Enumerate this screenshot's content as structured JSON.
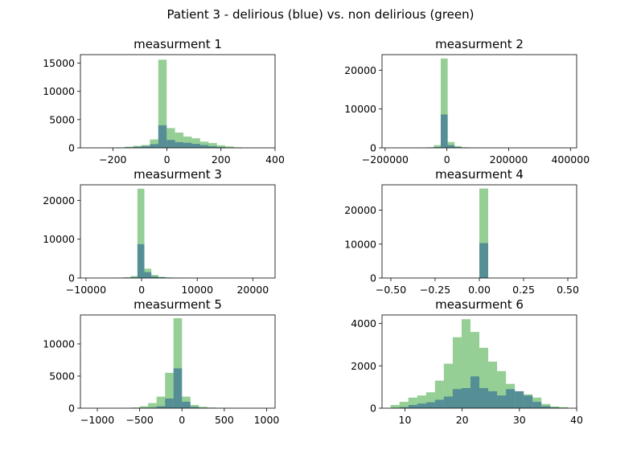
{
  "figure": {
    "title": "Patient 3 - delirious (blue) vs. non delirious (green)"
  },
  "colors": {
    "delirious": "#0000ff",
    "non_delirious": "#2ca02c"
  },
  "chart_data": [
    {
      "type": "bar",
      "title": "measurment 1",
      "xlim": [
        -320,
        400
      ],
      "ylim": [
        0,
        16500
      ],
      "xticks": [
        -200,
        0,
        200,
        400
      ],
      "yticks": [
        0,
        5000,
        10000,
        15000
      ],
      "x_tick_labels": [
        "−200",
        "0",
        "200",
        "400"
      ],
      "y_tick_labels": [
        "0",
        "5000",
        "10000",
        "15000"
      ],
      "series": [
        {
          "edges": [
            -280,
            -249,
            -218,
            -187,
            -156,
            -125,
            -94,
            -63,
            -32,
            -1,
            30,
            61,
            92,
            123,
            154,
            185,
            216,
            247,
            278
          ],
          "counts": [
            0,
            0,
            10,
            40,
            100,
            200,
            300,
            650,
            4000,
            1400,
            1000,
            900,
            700,
            500,
            300,
            150,
            50,
            0
          ]
        },
        {
          "edges": [
            -280,
            -249,
            -218,
            -187,
            -156,
            -125,
            -94,
            -63,
            -32,
            -1,
            30,
            61,
            92,
            123,
            154,
            185,
            216,
            247,
            278
          ],
          "counts": [
            0,
            0,
            20,
            80,
            200,
            350,
            500,
            1500,
            15600,
            3500,
            2700,
            2000,
            1700,
            1100,
            850,
            450,
            250,
            100
          ]
        }
      ]
    },
    {
      "type": "bar",
      "title": "measurment 2",
      "xlim": [
        -210000,
        420000
      ],
      "ylim": [
        0,
        24000
      ],
      "xticks": [
        -200000,
        0,
        200000,
        400000
      ],
      "yticks": [
        0,
        10000,
        20000
      ],
      "x_tick_labels": [
        "−200000",
        "0",
        "200000",
        "400000"
      ],
      "y_tick_labels": [
        "0",
        "10000",
        "20000"
      ],
      "series": [
        {
          "edges": [
            -200000,
            -177500,
            -155000,
            -132500,
            -110000,
            -87500,
            -65000,
            -42500,
            -20000,
            2500,
            25000,
            47500,
            70000,
            92500,
            115000,
            137500,
            160000
          ],
          "counts": [
            0,
            0,
            0,
            0,
            0,
            0,
            40,
            200,
            8600,
            700,
            200,
            60,
            20,
            0,
            0,
            0
          ]
        },
        {
          "edges": [
            -200000,
            -177500,
            -155000,
            -132500,
            -110000,
            -87500,
            -65000,
            -42500,
            -20000,
            2500,
            25000,
            47500,
            70000,
            92500,
            115000,
            137500,
            160000
          ],
          "counts": [
            0,
            0,
            0,
            0,
            20,
            50,
            150,
            700,
            23000,
            1500,
            450,
            150,
            60,
            20,
            0,
            0
          ]
        }
      ]
    },
    {
      "type": "bar",
      "title": "measurment 3",
      "xlim": [
        -11000,
        24000
      ],
      "ylim": [
        0,
        24000
      ],
      "xticks": [
        -10000,
        0,
        10000,
        20000
      ],
      "yticks": [
        0,
        10000,
        20000
      ],
      "x_tick_labels": [
        "−10000",
        "0",
        "10000",
        "20000"
      ],
      "y_tick_labels": [
        "0",
        "10000",
        "20000"
      ],
      "series": [
        {
          "edges": [
            -9500,
            -8250,
            -7000,
            -5750,
            -4500,
            -3250,
            -2000,
            -750,
            500,
            1750,
            3000,
            4250,
            5500,
            6750,
            8000,
            9250,
            10500
          ],
          "counts": [
            0,
            0,
            0,
            0,
            20,
            60,
            200,
            8700,
            1500,
            400,
            200,
            100,
            60,
            30,
            10,
            0
          ]
        },
        {
          "edges": [
            -9500,
            -8250,
            -7000,
            -5750,
            -4500,
            -3250,
            -2000,
            -750,
            500,
            1750,
            3000,
            4250,
            5500,
            6750,
            8000,
            9250,
            10500
          ],
          "counts": [
            0,
            0,
            0,
            10,
            50,
            200,
            500,
            23000,
            2400,
            800,
            300,
            150,
            80,
            40,
            20,
            10
          ]
        }
      ]
    },
    {
      "type": "bar",
      "title": "measurment 4",
      "xlim": [
        -0.55,
        0.55
      ],
      "ylim": [
        0,
        27500
      ],
      "xticks": [
        -0.5,
        -0.25,
        0,
        0.25,
        0.5
      ],
      "yticks": [
        0,
        10000,
        20000
      ],
      "x_tick_labels": [
        "−0.50",
        "−0.25",
        "0.00",
        "0.25",
        "0.50"
      ],
      "y_tick_labels": [
        "0",
        "10000",
        "20000"
      ],
      "series": [
        {
          "edges": [
            -0.5,
            -0.45,
            -0.4,
            -0.35,
            -0.3,
            -0.25,
            -0.2,
            -0.15,
            -0.1,
            -0.05,
            0,
            0.05,
            0.1,
            0.15,
            0.2,
            0.25,
            0.3,
            0.35,
            0.4,
            0.45,
            0.5
          ],
          "counts": [
            0,
            0,
            0,
            0,
            0,
            0,
            0,
            0,
            0,
            0,
            10300,
            0,
            0,
            0,
            0,
            0,
            0,
            0,
            0,
            0
          ]
        },
        {
          "edges": [
            -0.5,
            -0.45,
            -0.4,
            -0.35,
            -0.3,
            -0.25,
            -0.2,
            -0.15,
            -0.1,
            -0.05,
            0,
            0.05,
            0.1,
            0.15,
            0.2,
            0.25,
            0.3,
            0.35,
            0.4,
            0.45,
            0.5
          ],
          "counts": [
            0,
            0,
            0,
            0,
            0,
            0,
            0,
            0,
            0,
            0,
            26400,
            0,
            0,
            0,
            0,
            0,
            0,
            0,
            0,
            0
          ]
        }
      ]
    },
    {
      "type": "bar",
      "title": "measurment 5",
      "xlim": [
        -1200,
        1100
      ],
      "ylim": [
        0,
        14500
      ],
      "xticks": [
        -1000,
        -500,
        0,
        500,
        1000
      ],
      "yticks": [
        0,
        5000,
        10000
      ],
      "x_tick_labels": [
        "−1000",
        "−500",
        "0",
        "500",
        "1000"
      ],
      "y_tick_labels": [
        "0",
        "5000",
        "10000"
      ],
      "series": [
        {
          "edges": [
            -1000,
            -900,
            -800,
            -700,
            -600,
            -500,
            -400,
            -300,
            -200,
            -100,
            0,
            100,
            200,
            300,
            400,
            500,
            600,
            700,
            800,
            900,
            1000
          ],
          "counts": [
            0,
            0,
            0,
            0,
            10,
            50,
            100,
            300,
            1500,
            6200,
            1000,
            200,
            80,
            30,
            10,
            0,
            0,
            0,
            0,
            0
          ]
        },
        {
          "edges": [
            -1000,
            -900,
            -800,
            -700,
            -600,
            -500,
            -400,
            -300,
            -200,
            -100,
            0,
            100,
            200,
            300,
            400,
            500,
            600,
            700,
            800,
            900,
            1000
          ],
          "counts": [
            0,
            0,
            0,
            20,
            100,
            300,
            800,
            1800,
            5500,
            14000,
            1800,
            500,
            200,
            100,
            60,
            40,
            20,
            10,
            0,
            0
          ]
        }
      ]
    },
    {
      "type": "bar",
      "title": "measurment 6",
      "xlim": [
        6,
        40
      ],
      "ylim": [
        0,
        4400
      ],
      "xticks": [
        10,
        20,
        30,
        40
      ],
      "yticks": [
        0,
        2000,
        4000
      ],
      "x_tick_labels": [
        "10",
        "20",
        "30",
        "40"
      ],
      "y_tick_labels": [
        "0",
        "2000",
        "4000"
      ],
      "series": [
        {
          "edges": [
            7.5,
            9.05,
            10.6,
            12.15,
            13.7,
            15.25,
            16.8,
            18.35,
            19.9,
            21.45,
            23,
            24.55,
            26.1,
            27.65,
            29.2,
            30.75,
            32.3,
            33.85,
            35.4,
            36.95,
            38.5
          ],
          "counts": [
            0,
            50,
            150,
            220,
            280,
            400,
            550,
            900,
            950,
            1500,
            950,
            800,
            600,
            900,
            800,
            600,
            300,
            100,
            40,
            10
          ]
        },
        {
          "edges": [
            7.5,
            9.05,
            10.6,
            12.15,
            13.7,
            15.25,
            16.8,
            18.35,
            19.9,
            21.45,
            23,
            24.55,
            26.1,
            27.65,
            29.2,
            30.75,
            32.3,
            33.85,
            35.4,
            36.95,
            38.5
          ],
          "counts": [
            150,
            300,
            500,
            600,
            750,
            1300,
            2100,
            3350,
            4200,
            3600,
            2850,
            2200,
            1750,
            1150,
            800,
            650,
            500,
            200,
            80,
            50
          ]
        }
      ]
    }
  ]
}
